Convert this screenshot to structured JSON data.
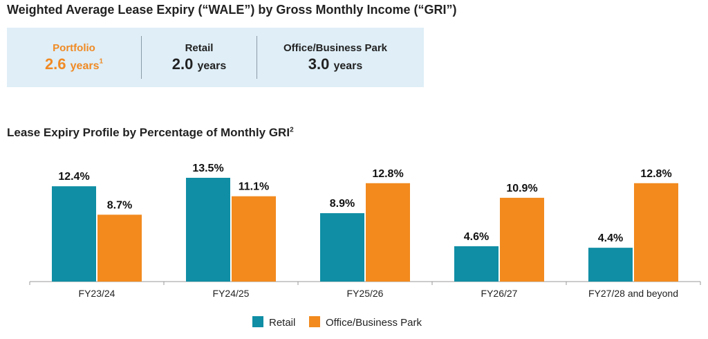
{
  "wale": {
    "title": "Weighted Average Lease Expiry (“WALE”) by Gross Monthly Income (“GRI”)",
    "items": [
      {
        "label": "Portfolio",
        "value": "2.6",
        "unit": "years",
        "footnote": "1"
      },
      {
        "label": "Retail",
        "value": "2.0",
        "unit": "years",
        "footnote": ""
      },
      {
        "label": "Office/Business Park",
        "value": "3.0",
        "unit": "years",
        "footnote": ""
      }
    ]
  },
  "chart_title": {
    "text": "Lease Expiry Profile by Percentage of Monthly GRI",
    "footnote": "2"
  },
  "colors": {
    "retail": "#0f8ea5",
    "office": "#f28a1e",
    "highlight": "#f08a24",
    "wale_bg": "#dfeef7"
  },
  "chart_data": {
    "type": "bar",
    "categories": [
      "FY23/24",
      "FY24/25",
      "FY25/26",
      "FY26/27",
      "FY27/28 and beyond"
    ],
    "series": [
      {
        "name": "Retail",
        "values": [
          12.4,
          13.5,
          8.9,
          4.6,
          4.4
        ],
        "labels": [
          "12.4%",
          "13.5%",
          "8.9%",
          "4.6%",
          "4.4%"
        ]
      },
      {
        "name": "Office/Business Park",
        "values": [
          8.7,
          11.1,
          12.8,
          10.9,
          12.8
        ],
        "labels": [
          "8.7%",
          "11.1%",
          "12.8%",
          "10.9%",
          "12.8%"
        ]
      }
    ],
    "title": "Lease Expiry Profile by Percentage of Monthly GRI",
    "xlabel": "",
    "ylabel": "",
    "ylim": [
      0,
      13.5
    ],
    "legend": "bottom-center",
    "grid": false
  }
}
